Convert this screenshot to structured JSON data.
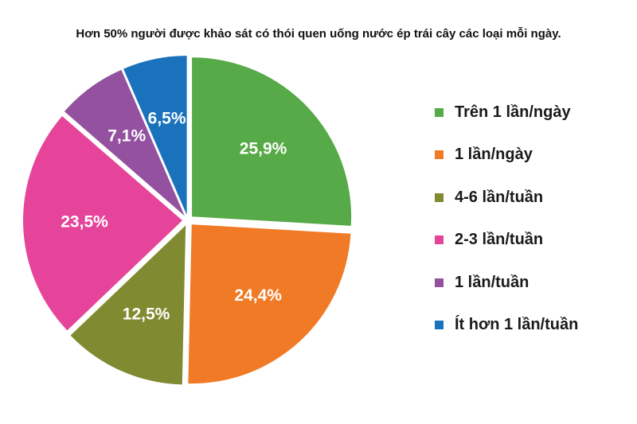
{
  "chart_data": {
    "type": "pie",
    "title": "Hơn 50% người được khảo sát có thói quen uống nước ép trái cây các loại mỗi ngày.",
    "slices": [
      {
        "name": "Trên 1 lần/ngày",
        "value": 25.9,
        "label": "25,9%",
        "color": "#56aa47"
      },
      {
        "name": "1 lần/ngày",
        "value": 24.4,
        "label": "24,4%",
        "color": "#f07a25"
      },
      {
        "name": "4-6 lần/tuần",
        "value": 12.5,
        "label": "12,5%",
        "color": "#808a30"
      },
      {
        "name": "2-3 lần/tuần",
        "value": 23.5,
        "label": "23,5%",
        "color": "#e5449a"
      },
      {
        "name": "1 lần/tuần",
        "value": 7.1,
        "label": "7,1%",
        "color": "#93519f"
      },
      {
        "name": "Ít hơn 1 lần/tuần",
        "value": 6.5,
        "label": "6,5%",
        "color": "#1a72bc"
      }
    ],
    "legend_order": [
      "Trên 1 lần/ngày",
      "1 lần/ngày",
      "4-6 lần/tuần",
      "2-3 lần/tuần",
      "1 lần/tuần",
      "Ít hơn 1 lần/tuần"
    ],
    "legend_position": "right"
  }
}
